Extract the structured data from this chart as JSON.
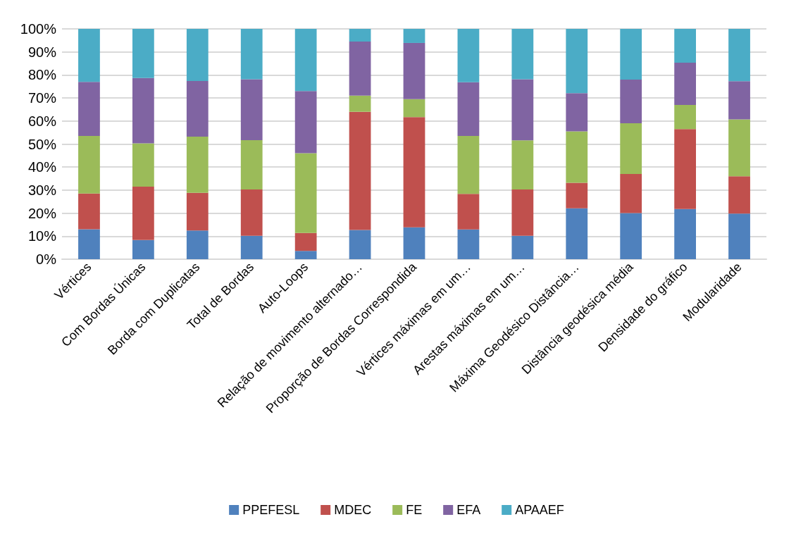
{
  "chart_data": {
    "type": "bar",
    "stacked": true,
    "categories": [
      "Vértices",
      "Com Bordas Únicas",
      "Borda com Duplicatas",
      "Total de Bordas",
      "Auto-Loops",
      "Relação de movimento alternado…",
      "Proporção de Bordas Correspondida",
      "Vértices máximas em um…",
      "Arestas máximas em um…",
      "Máxima Geodésico Distância…",
      "Distância geodésica média",
      "Densidade do gráfico",
      "Modularidade"
    ],
    "series": [
      {
        "name": "PPEFESL",
        "color": "#4f81bd",
        "values": [
          13,
          8.3,
          12.5,
          10.2,
          3.6,
          12.7,
          13.8,
          12.9,
          10.2,
          22.1,
          20,
          21.8,
          19.8
        ]
      },
      {
        "name": "MDEC",
        "color": "#c0504d",
        "values": [
          15.5,
          23.2,
          16.3,
          20.1,
          7.8,
          51.3,
          47.9,
          15.5,
          20.1,
          11.1,
          17,
          34.7,
          16.2
        ]
      },
      {
        "name": "FE",
        "color": "#9bbb59",
        "values": [
          25,
          18.8,
          24.4,
          21.4,
          34.6,
          7,
          7.8,
          25.1,
          21.3,
          22.3,
          22,
          10.5,
          24.7
        ]
      },
      {
        "name": "EFA",
        "color": "#8064a2",
        "values": [
          23.5,
          28.4,
          24.2,
          26.4,
          27,
          23.5,
          24.4,
          23.3,
          26.5,
          16.6,
          19,
          18.3,
          16.6
        ]
      },
      {
        "name": "APAAEF",
        "color": "#4bacc6",
        "values": [
          23,
          21.3,
          22.6,
          21.9,
          27,
          5.5,
          6.1,
          23.2,
          21.9,
          27.9,
          22,
          14.7,
          22.7
        ]
      }
    ],
    "ylim": [
      0,
      100
    ],
    "yticks": [
      {
        "value": 0,
        "label": "0%"
      },
      {
        "value": 10,
        "label": "10%"
      },
      {
        "value": 20,
        "label": "20%"
      },
      {
        "value": 30,
        "label": "30%"
      },
      {
        "value": 40,
        "label": "40%"
      },
      {
        "value": 50,
        "label": "50%"
      },
      {
        "value": 60,
        "label": "60%"
      },
      {
        "value": 70,
        "label": "70%"
      },
      {
        "value": 80,
        "label": "80%"
      },
      {
        "value": 90,
        "label": "90%"
      },
      {
        "value": 100,
        "label": "100%"
      }
    ],
    "grid": "y",
    "legend": "bottom"
  }
}
